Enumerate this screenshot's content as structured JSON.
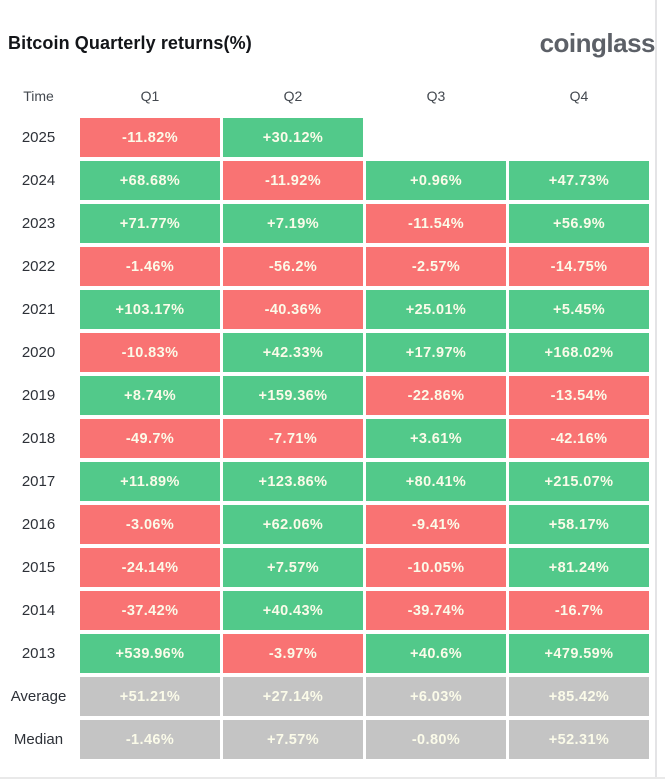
{
  "header": {
    "title": "Bitcoin Quarterly returns(%)",
    "logo": "coinglass"
  },
  "table": {
    "columns": [
      "Time",
      "Q1",
      "Q2",
      "Q3",
      "Q4"
    ],
    "rows": [
      {
        "label": "2025",
        "cells": [
          {
            "text": "-11.82%",
            "tone": "red"
          },
          {
            "text": "+30.12%",
            "tone": "green"
          },
          null,
          null
        ]
      },
      {
        "label": "2024",
        "cells": [
          {
            "text": "+68.68%",
            "tone": "green"
          },
          {
            "text": "-11.92%",
            "tone": "red"
          },
          {
            "text": "+0.96%",
            "tone": "green"
          },
          {
            "text": "+47.73%",
            "tone": "green"
          }
        ]
      },
      {
        "label": "2023",
        "cells": [
          {
            "text": "+71.77%",
            "tone": "green"
          },
          {
            "text": "+7.19%",
            "tone": "green"
          },
          {
            "text": "-11.54%",
            "tone": "red"
          },
          {
            "text": "+56.9%",
            "tone": "green"
          }
        ]
      },
      {
        "label": "2022",
        "cells": [
          {
            "text": "-1.46%",
            "tone": "red"
          },
          {
            "text": "-56.2%",
            "tone": "red"
          },
          {
            "text": "-2.57%",
            "tone": "red"
          },
          {
            "text": "-14.75%",
            "tone": "red"
          }
        ]
      },
      {
        "label": "2021",
        "cells": [
          {
            "text": "+103.17%",
            "tone": "green"
          },
          {
            "text": "-40.36%",
            "tone": "red"
          },
          {
            "text": "+25.01%",
            "tone": "green"
          },
          {
            "text": "+5.45%",
            "tone": "green"
          }
        ]
      },
      {
        "label": "2020",
        "cells": [
          {
            "text": "-10.83%",
            "tone": "red"
          },
          {
            "text": "+42.33%",
            "tone": "green"
          },
          {
            "text": "+17.97%",
            "tone": "green"
          },
          {
            "text": "+168.02%",
            "tone": "green"
          }
        ]
      },
      {
        "label": "2019",
        "cells": [
          {
            "text": "+8.74%",
            "tone": "green"
          },
          {
            "text": "+159.36%",
            "tone": "green"
          },
          {
            "text": "-22.86%",
            "tone": "red"
          },
          {
            "text": "-13.54%",
            "tone": "red"
          }
        ]
      },
      {
        "label": "2018",
        "cells": [
          {
            "text": "-49.7%",
            "tone": "red"
          },
          {
            "text": "-7.71%",
            "tone": "red"
          },
          {
            "text": "+3.61%",
            "tone": "green"
          },
          {
            "text": "-42.16%",
            "tone": "red"
          }
        ]
      },
      {
        "label": "2017",
        "cells": [
          {
            "text": "+11.89%",
            "tone": "green"
          },
          {
            "text": "+123.86%",
            "tone": "green"
          },
          {
            "text": "+80.41%",
            "tone": "green"
          },
          {
            "text": "+215.07%",
            "tone": "green"
          }
        ]
      },
      {
        "label": "2016",
        "cells": [
          {
            "text": "-3.06%",
            "tone": "red"
          },
          {
            "text": "+62.06%",
            "tone": "green"
          },
          {
            "text": "-9.41%",
            "tone": "red"
          },
          {
            "text": "+58.17%",
            "tone": "green"
          }
        ]
      },
      {
        "label": "2015",
        "cells": [
          {
            "text": "-24.14%",
            "tone": "red"
          },
          {
            "text": "+7.57%",
            "tone": "green"
          },
          {
            "text": "-10.05%",
            "tone": "red"
          },
          {
            "text": "+81.24%",
            "tone": "green"
          }
        ]
      },
      {
        "label": "2014",
        "cells": [
          {
            "text": "-37.42%",
            "tone": "red"
          },
          {
            "text": "+40.43%",
            "tone": "green"
          },
          {
            "text": "-39.74%",
            "tone": "red"
          },
          {
            "text": "-16.7%",
            "tone": "red"
          }
        ]
      },
      {
        "label": "2013",
        "cells": [
          {
            "text": "+539.96%",
            "tone": "green"
          },
          {
            "text": "-3.97%",
            "tone": "red"
          },
          {
            "text": "+40.6%",
            "tone": "green"
          },
          {
            "text": "+479.59%",
            "tone": "green"
          }
        ]
      },
      {
        "label": "Average",
        "cells": [
          {
            "text": "+51.21%",
            "tone": "gray"
          },
          {
            "text": "+27.14%",
            "tone": "gray"
          },
          {
            "text": "+6.03%",
            "tone": "gray"
          },
          {
            "text": "+85.42%",
            "tone": "gray"
          }
        ]
      },
      {
        "label": "Median",
        "cells": [
          {
            "text": "-1.46%",
            "tone": "gray"
          },
          {
            "text": "+7.57%",
            "tone": "gray"
          },
          {
            "text": "-0.80%",
            "tone": "gray"
          },
          {
            "text": "+52.31%",
            "tone": "gray"
          }
        ]
      }
    ]
  },
  "colors": {
    "positive_green": "#52c98a",
    "negative_red": "#f97373",
    "summary_gray": "#c4c4c4",
    "cell_text": "#fbfbe9",
    "logo_gray": "#5c6067"
  },
  "chart_data": {
    "type": "heatmap",
    "title": "Bitcoin Quarterly returns(%)",
    "columns": [
      "Q1",
      "Q2",
      "Q3",
      "Q4"
    ],
    "rows": [
      "2025",
      "2024",
      "2023",
      "2022",
      "2021",
      "2020",
      "2019",
      "2018",
      "2017",
      "2016",
      "2015",
      "2014",
      "2013",
      "Average",
      "Median"
    ],
    "values_pct": [
      [
        -11.82,
        30.12,
        null,
        null
      ],
      [
        68.68,
        -11.92,
        0.96,
        47.73
      ],
      [
        71.77,
        7.19,
        -11.54,
        56.9
      ],
      [
        -1.46,
        -56.2,
        -2.57,
        -14.75
      ],
      [
        103.17,
        -40.36,
        25.01,
        5.45
      ],
      [
        -10.83,
        42.33,
        17.97,
        168.02
      ],
      [
        8.74,
        159.36,
        -22.86,
        -13.54
      ],
      [
        -49.7,
        -7.71,
        3.61,
        -42.16
      ],
      [
        11.89,
        123.86,
        80.41,
        215.07
      ],
      [
        -3.06,
        62.06,
        -9.41,
        58.17
      ],
      [
        -24.14,
        7.57,
        -10.05,
        81.24
      ],
      [
        -37.42,
        40.43,
        -39.74,
        -16.7
      ],
      [
        539.96,
        -3.97,
        40.6,
        479.59
      ],
      [
        51.21,
        27.14,
        6.03,
        85.42
      ],
      [
        -1.46,
        7.57,
        -0.8,
        52.31
      ]
    ],
    "legend": "green = positive quarter, red = negative quarter, gray = Average/Median summary rows",
    "grid": false
  }
}
